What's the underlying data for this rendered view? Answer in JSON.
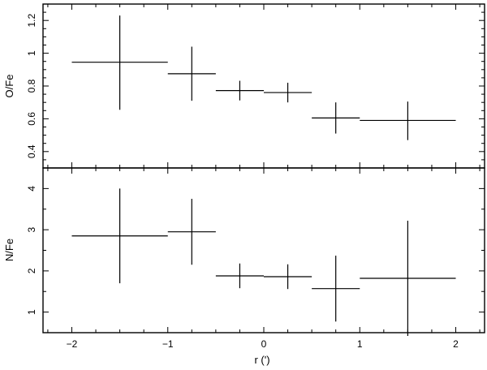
{
  "chart_data": [
    {
      "type": "scatter",
      "title": "",
      "xlabel": "",
      "ylabel": "O/Fe",
      "xlim": [
        -2.3,
        2.3
      ],
      "ylim": [
        0.3,
        1.3
      ],
      "xticks": [
        -2,
        -1,
        0,
        1,
        2
      ],
      "xtick_labels": [
        "",
        "",
        "",
        "",
        ""
      ],
      "yticks": [
        0.4,
        0.6,
        0.8,
        1,
        1.2
      ],
      "ytick_labels": [
        "0.4",
        "0.6",
        "0.8",
        "1",
        "1.2"
      ],
      "points": [
        {
          "x": -1.5,
          "xerr_lo": 0.5,
          "xerr_hi": 0.5,
          "y": 0.945,
          "yerr_lo": 0.29,
          "yerr_hi": 0.285
        },
        {
          "x": -0.75,
          "xerr_lo": 0.25,
          "xerr_hi": 0.25,
          "y": 0.875,
          "yerr_lo": 0.165,
          "yerr_hi": 0.165
        },
        {
          "x": -0.25,
          "xerr_lo": 0.25,
          "xerr_hi": 0.25,
          "y": 0.772,
          "yerr_lo": 0.06,
          "yerr_hi": 0.06
        },
        {
          "x": 0.25,
          "xerr_lo": 0.25,
          "xerr_hi": 0.25,
          "y": 0.76,
          "yerr_lo": 0.06,
          "yerr_hi": 0.06
        },
        {
          "x": 0.75,
          "xerr_lo": 0.25,
          "xerr_hi": 0.25,
          "y": 0.605,
          "yerr_lo": 0.095,
          "yerr_hi": 0.095
        },
        {
          "x": 1.5,
          "xerr_lo": 0.5,
          "xerr_hi": 0.5,
          "y": 0.59,
          "yerr_lo": 0.12,
          "yerr_hi": 0.115
        }
      ]
    },
    {
      "type": "scatter",
      "title": "",
      "xlabel": "r (')",
      "ylabel": "N/Fe",
      "xlim": [
        -2.3,
        2.3
      ],
      "ylim": [
        0.5,
        4.5
      ],
      "xticks": [
        -2,
        -1,
        0,
        1,
        2
      ],
      "xtick_labels": [
        "−2",
        "−1",
        "0",
        "1",
        "2"
      ],
      "yticks": [
        1,
        2,
        3,
        4
      ],
      "ytick_labels": [
        "1",
        "2",
        "3",
        "4"
      ],
      "points": [
        {
          "x": -1.5,
          "xerr_lo": 0.5,
          "xerr_hi": 0.5,
          "y": 2.85,
          "yerr_lo": 1.15,
          "yerr_hi": 1.15
        },
        {
          "x": -0.75,
          "xerr_lo": 0.25,
          "xerr_hi": 0.25,
          "y": 2.95,
          "yerr_lo": 0.8,
          "yerr_hi": 0.8
        },
        {
          "x": -0.25,
          "xerr_lo": 0.25,
          "xerr_hi": 0.25,
          "y": 1.88,
          "yerr_lo": 0.3,
          "yerr_hi": 0.3
        },
        {
          "x": 0.25,
          "xerr_lo": 0.25,
          "xerr_hi": 0.25,
          "y": 1.86,
          "yerr_lo": 0.3,
          "yerr_hi": 0.3
        },
        {
          "x": 0.75,
          "xerr_lo": 0.25,
          "xerr_hi": 0.25,
          "y": 1.57,
          "yerr_lo": 0.8,
          "yerr_hi": 0.8
        },
        {
          "x": 1.5,
          "xerr_lo": 0.5,
          "xerr_hi": 0.5,
          "y": 1.82,
          "yerr_lo": 1.4,
          "yerr_hi": 1.4
        }
      ]
    }
  ]
}
